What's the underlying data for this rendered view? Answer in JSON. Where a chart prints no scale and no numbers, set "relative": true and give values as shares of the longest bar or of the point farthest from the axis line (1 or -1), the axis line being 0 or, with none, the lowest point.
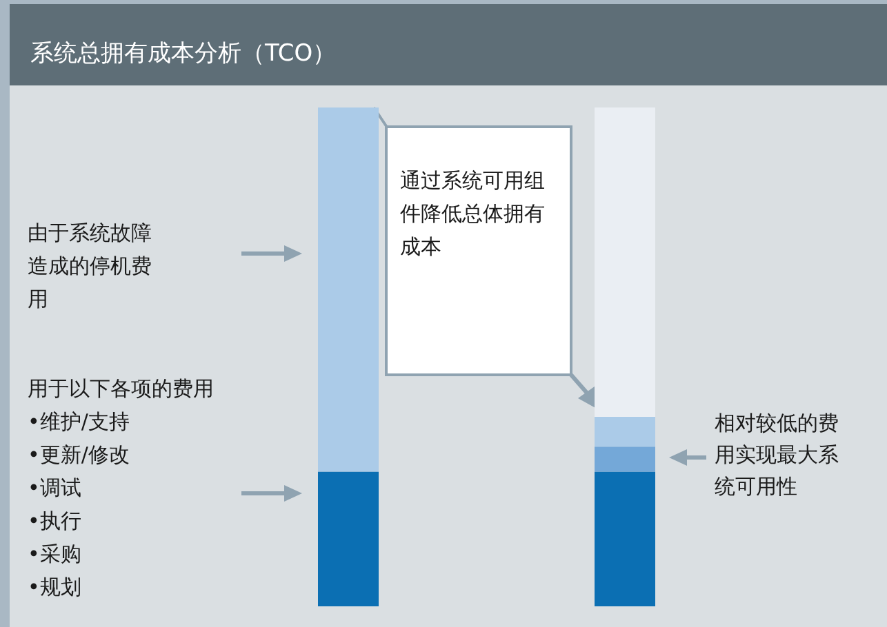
{
  "chart_data": {
    "type": "bar",
    "title": "系统总拥有成本分析（TCO）",
    "stacked": true,
    "relative": true,
    "categories": [
      null,
      null
    ],
    "series": [
      {
        "color": "#0b6fb3",
        "values": [
          0.27,
          0.27
        ]
      },
      {
        "color": "#74a8d8",
        "values": [
          null,
          0.05
        ]
      },
      {
        "color": "#abcbe8",
        "values": [
          0.73,
          0.06
        ]
      },
      {
        "color": "#eaeef3",
        "values": [
          null,
          0.62
        ]
      }
    ],
    "annotations": [
      "由于系统故障造成的停机费用",
      "用于以下各项的费用\n•维护/支持\n•更新/修改\n•调试\n•执行\n•采购\n•规划",
      "通过系统可用组件降低总体拥有成本",
      "相对较低的费用实现最大系统可用性"
    ]
  }
}
